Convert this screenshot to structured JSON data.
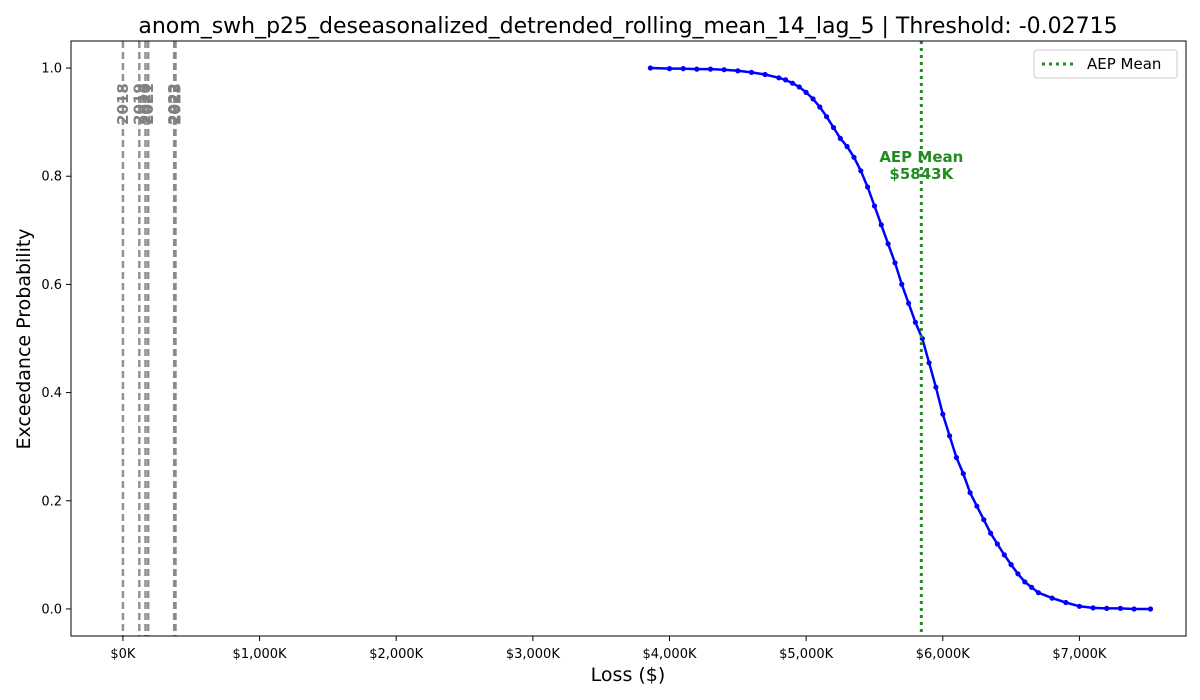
{
  "chart_data": {
    "type": "line",
    "title": "anom_swh_p25_deseasonalized_detrended_rolling_mean_14_lag_5 | Threshold: -0.02715",
    "xlabel": "Loss ($)",
    "ylabel": "Exceedance Probability",
    "xlim": [
      -380,
      7780
    ],
    "ylim": [
      -0.05,
      1.05
    ],
    "x_ticks": [
      {
        "value": 0,
        "label": "$0K"
      },
      {
        "value": 1000,
        "label": "$1,000K"
      },
      {
        "value": 2000,
        "label": "$2,000K"
      },
      {
        "value": 3000,
        "label": "$3,000K"
      },
      {
        "value": 4000,
        "label": "$4,000K"
      },
      {
        "value": 5000,
        "label": "$5,000K"
      },
      {
        "value": 6000,
        "label": "$6,000K"
      },
      {
        "value": 7000,
        "label": "$7,000K"
      }
    ],
    "y_ticks": [
      {
        "value": 0.0,
        "label": "0.0"
      },
      {
        "value": 0.2,
        "label": "0.2"
      },
      {
        "value": 0.4,
        "label": "0.4"
      },
      {
        "value": 0.6,
        "label": "0.6"
      },
      {
        "value": 0.8,
        "label": "0.8"
      },
      {
        "value": 1.0,
        "label": "1.0"
      }
    ],
    "series": [
      {
        "color": "#0000ff",
        "points": [
          [
            3860,
            1.0
          ],
          [
            4000,
            0.999
          ],
          [
            4100,
            0.999
          ],
          [
            4200,
            0.998
          ],
          [
            4300,
            0.998
          ],
          [
            4400,
            0.997
          ],
          [
            4500,
            0.995
          ],
          [
            4600,
            0.992
          ],
          [
            4700,
            0.988
          ],
          [
            4800,
            0.982
          ],
          [
            4850,
            0.978
          ],
          [
            4900,
            0.972
          ],
          [
            4950,
            0.965
          ],
          [
            5000,
            0.955
          ],
          [
            5050,
            0.943
          ],
          [
            5100,
            0.928
          ],
          [
            5150,
            0.91
          ],
          [
            5200,
            0.89
          ],
          [
            5250,
            0.87
          ],
          [
            5300,
            0.855
          ],
          [
            5350,
            0.835
          ],
          [
            5400,
            0.81
          ],
          [
            5450,
            0.78
          ],
          [
            5500,
            0.745
          ],
          [
            5550,
            0.71
          ],
          [
            5600,
            0.675
          ],
          [
            5650,
            0.64
          ],
          [
            5700,
            0.6
          ],
          [
            5750,
            0.565
          ],
          [
            5800,
            0.53
          ],
          [
            5850,
            0.5
          ],
          [
            5900,
            0.455
          ],
          [
            5950,
            0.41
          ],
          [
            6000,
            0.36
          ],
          [
            6050,
            0.32
          ],
          [
            6100,
            0.28
          ],
          [
            6150,
            0.25
          ],
          [
            6200,
            0.215
          ],
          [
            6250,
            0.19
          ],
          [
            6300,
            0.165
          ],
          [
            6350,
            0.14
          ],
          [
            6400,
            0.12
          ],
          [
            6450,
            0.1
          ],
          [
            6500,
            0.082
          ],
          [
            6550,
            0.065
          ],
          [
            6600,
            0.05
          ],
          [
            6650,
            0.04
          ],
          [
            6700,
            0.03
          ],
          [
            6800,
            0.02
          ],
          [
            6900,
            0.012
          ],
          [
            7000,
            0.005
          ],
          [
            7100,
            0.002
          ],
          [
            7200,
            0.001
          ],
          [
            7300,
            0.001
          ],
          [
            7400,
            0.0
          ],
          [
            7520,
            0.0
          ]
        ]
      }
    ],
    "year_lines": [
      {
        "x": 0,
        "label": "2018"
      },
      {
        "x": 120,
        "label": "2019"
      },
      {
        "x": 165,
        "label": "2020"
      },
      {
        "x": 185,
        "label": "2021"
      },
      {
        "x": 375,
        "label": "2022"
      },
      {
        "x": 385,
        "label": "2023"
      }
    ],
    "aep_mean": {
      "x": 5843,
      "label": "AEP Mean",
      "value_label": "$5843K",
      "color": "#228b22"
    },
    "legend": {
      "position": "top-right",
      "entries": [
        {
          "label": "AEP Mean"
        }
      ]
    },
    "year_line_color": "#808080",
    "grid": false
  }
}
